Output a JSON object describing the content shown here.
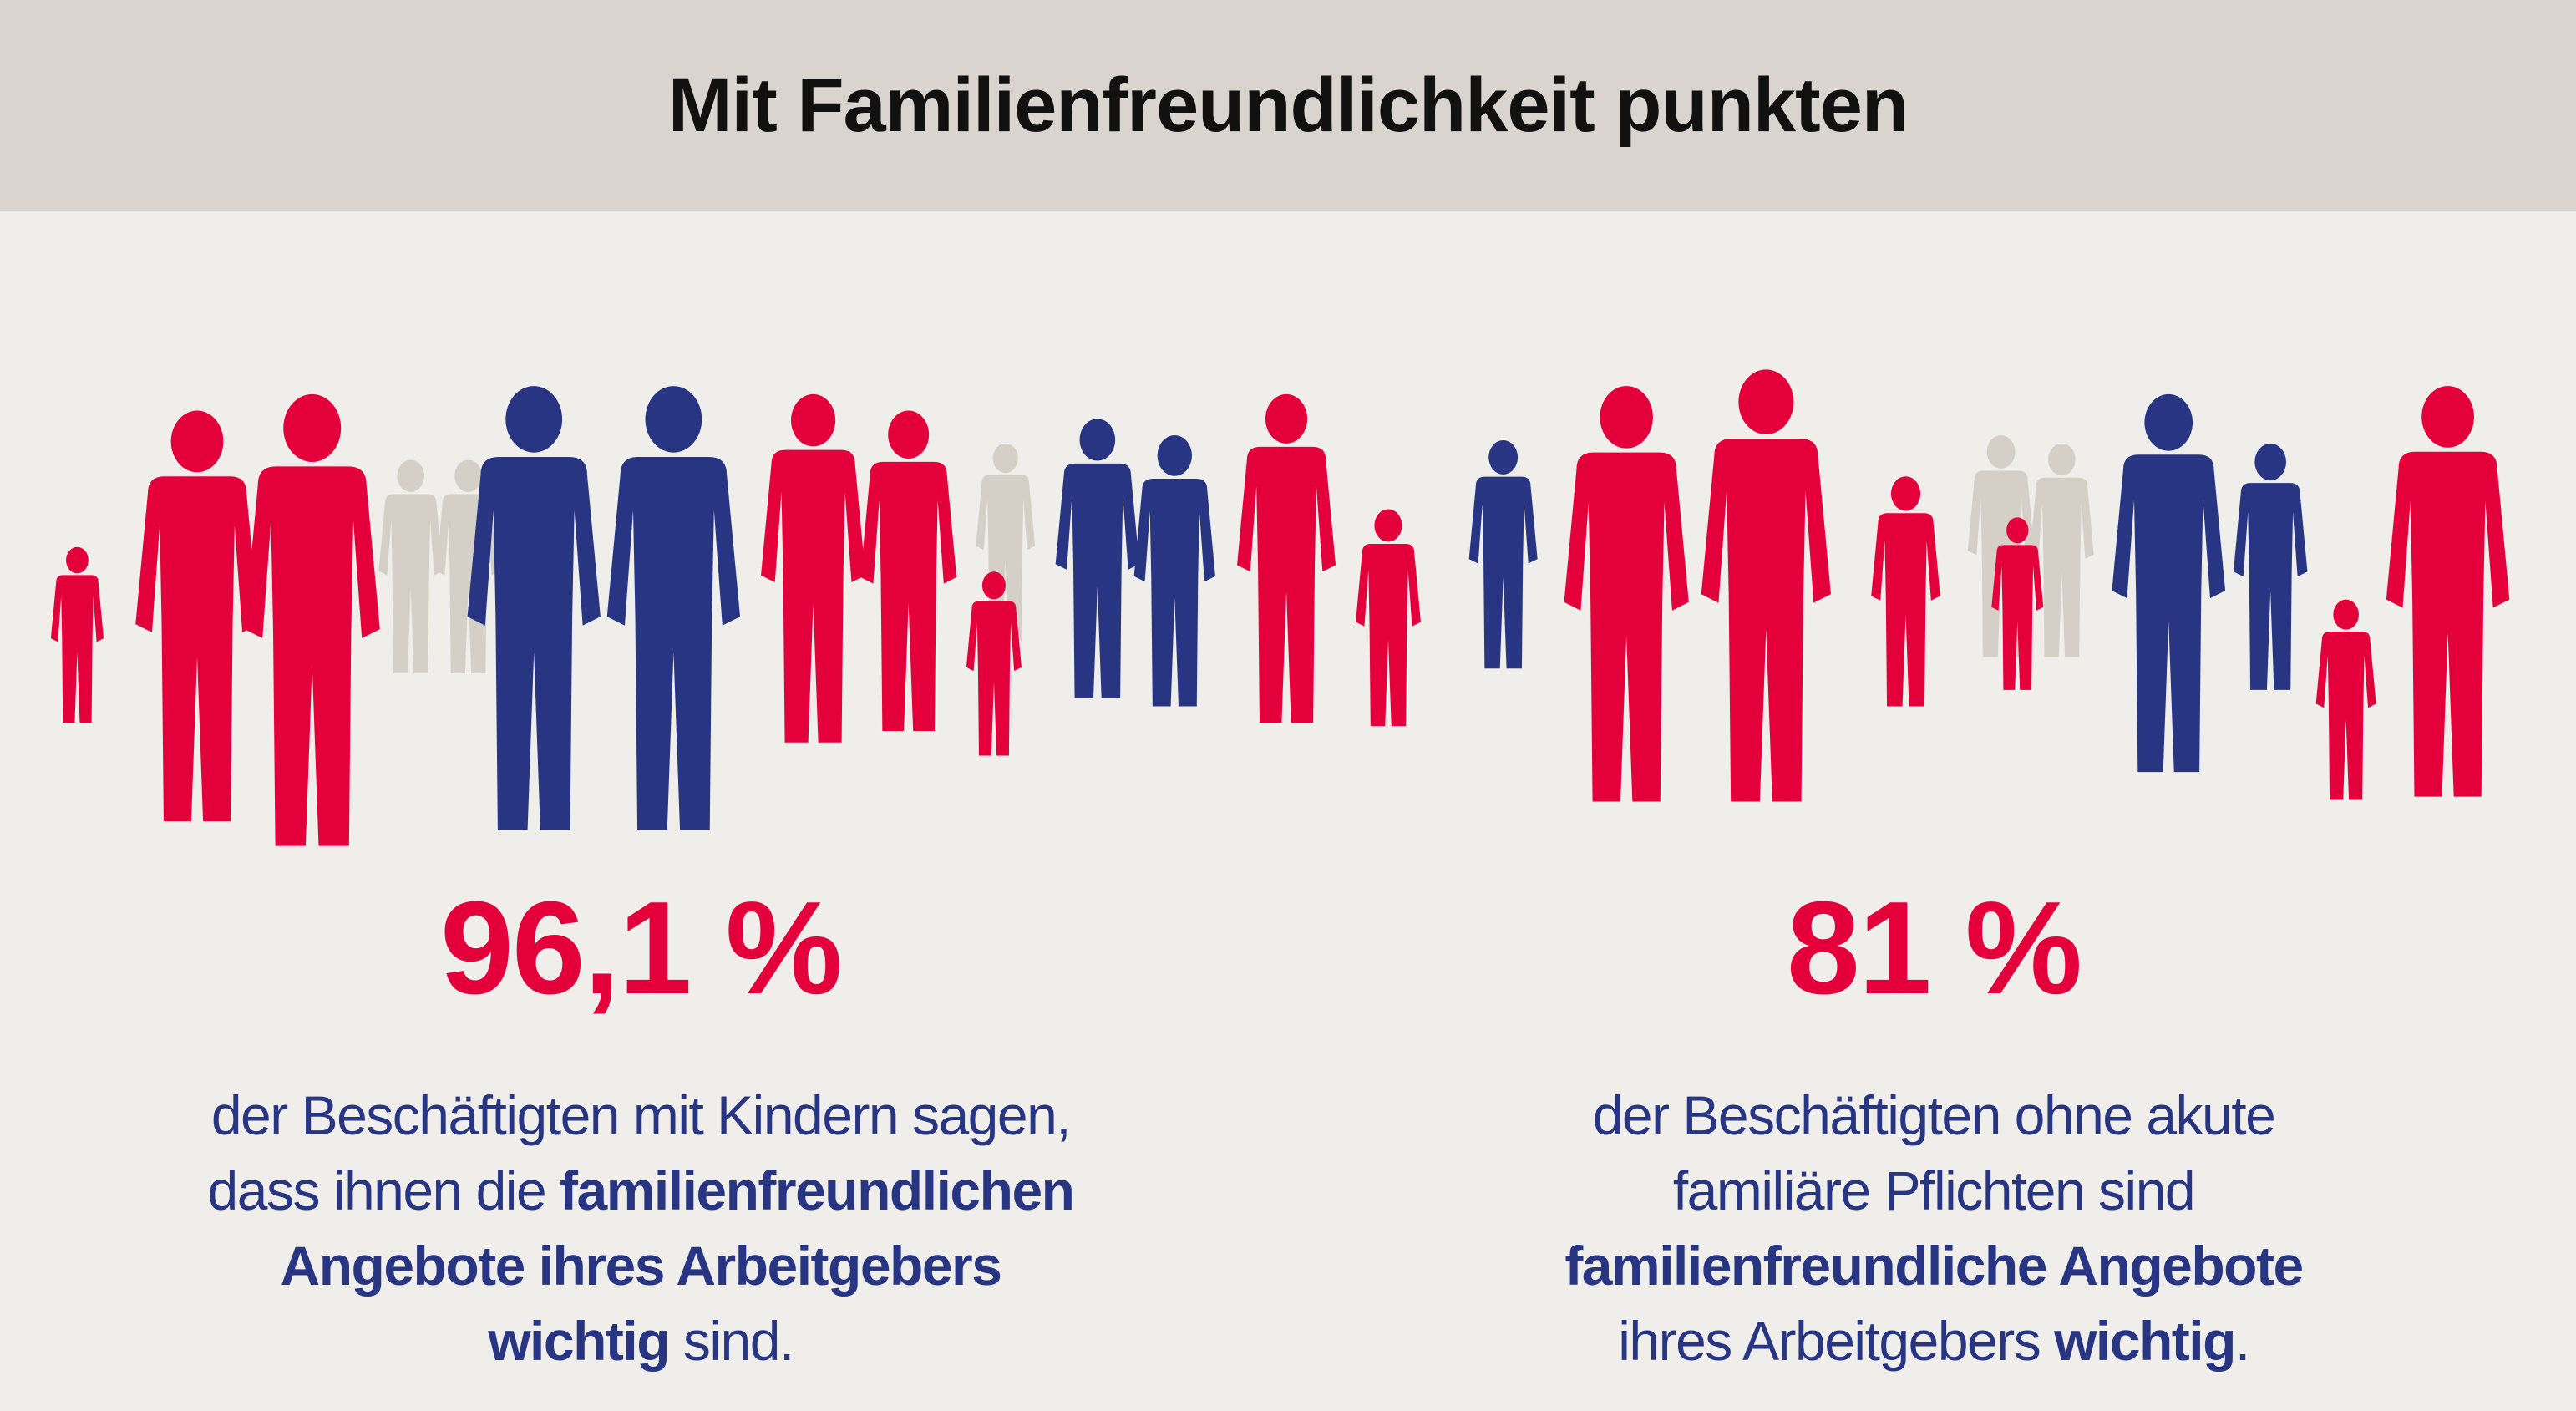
{
  "header": {
    "title": "Mit Familienfreundlichkeit punkten"
  },
  "colors": {
    "accent_red": "#E4003A",
    "navy": "#283583",
    "grey": "#D4D0C8",
    "background": "#EFEEEA",
    "header_bg": "#D9D5CE"
  },
  "illustration": {
    "icon": "crowd-of-people-silhouettes-icon"
  },
  "stats": [
    {
      "value": "96,1 %",
      "lines": [
        {
          "parts": [
            {
              "text": "der Beschäftigten mit Kindern sagen,",
              "bold": false
            }
          ]
        },
        {
          "parts": [
            {
              "text": "dass ihnen die ",
              "bold": false
            },
            {
              "text": "familienfreundlichen",
              "bold": true
            }
          ]
        },
        {
          "parts": [
            {
              "text": "Angebote ihres Arbeitgebers",
              "bold": true
            }
          ]
        },
        {
          "parts": [
            {
              "text": "wichtig",
              "bold": true
            },
            {
              "text": " sind.",
              "bold": false
            }
          ]
        }
      ]
    },
    {
      "value": "81 %",
      "lines": [
        {
          "parts": [
            {
              "text": "der Beschäftigten ohne akute",
              "bold": false
            }
          ]
        },
        {
          "parts": [
            {
              "text": "familiäre Pflichten sind",
              "bold": false
            }
          ]
        },
        {
          "parts": [
            {
              "text": "familienfreundliche Angebote",
              "bold": true
            }
          ]
        },
        {
          "parts": [
            {
              "text": "ihres Arbeitgebers ",
              "bold": false
            },
            {
              "text": "wichtig",
              "bold": true
            },
            {
              "text": ".",
              "bold": false
            }
          ]
        }
      ]
    }
  ]
}
